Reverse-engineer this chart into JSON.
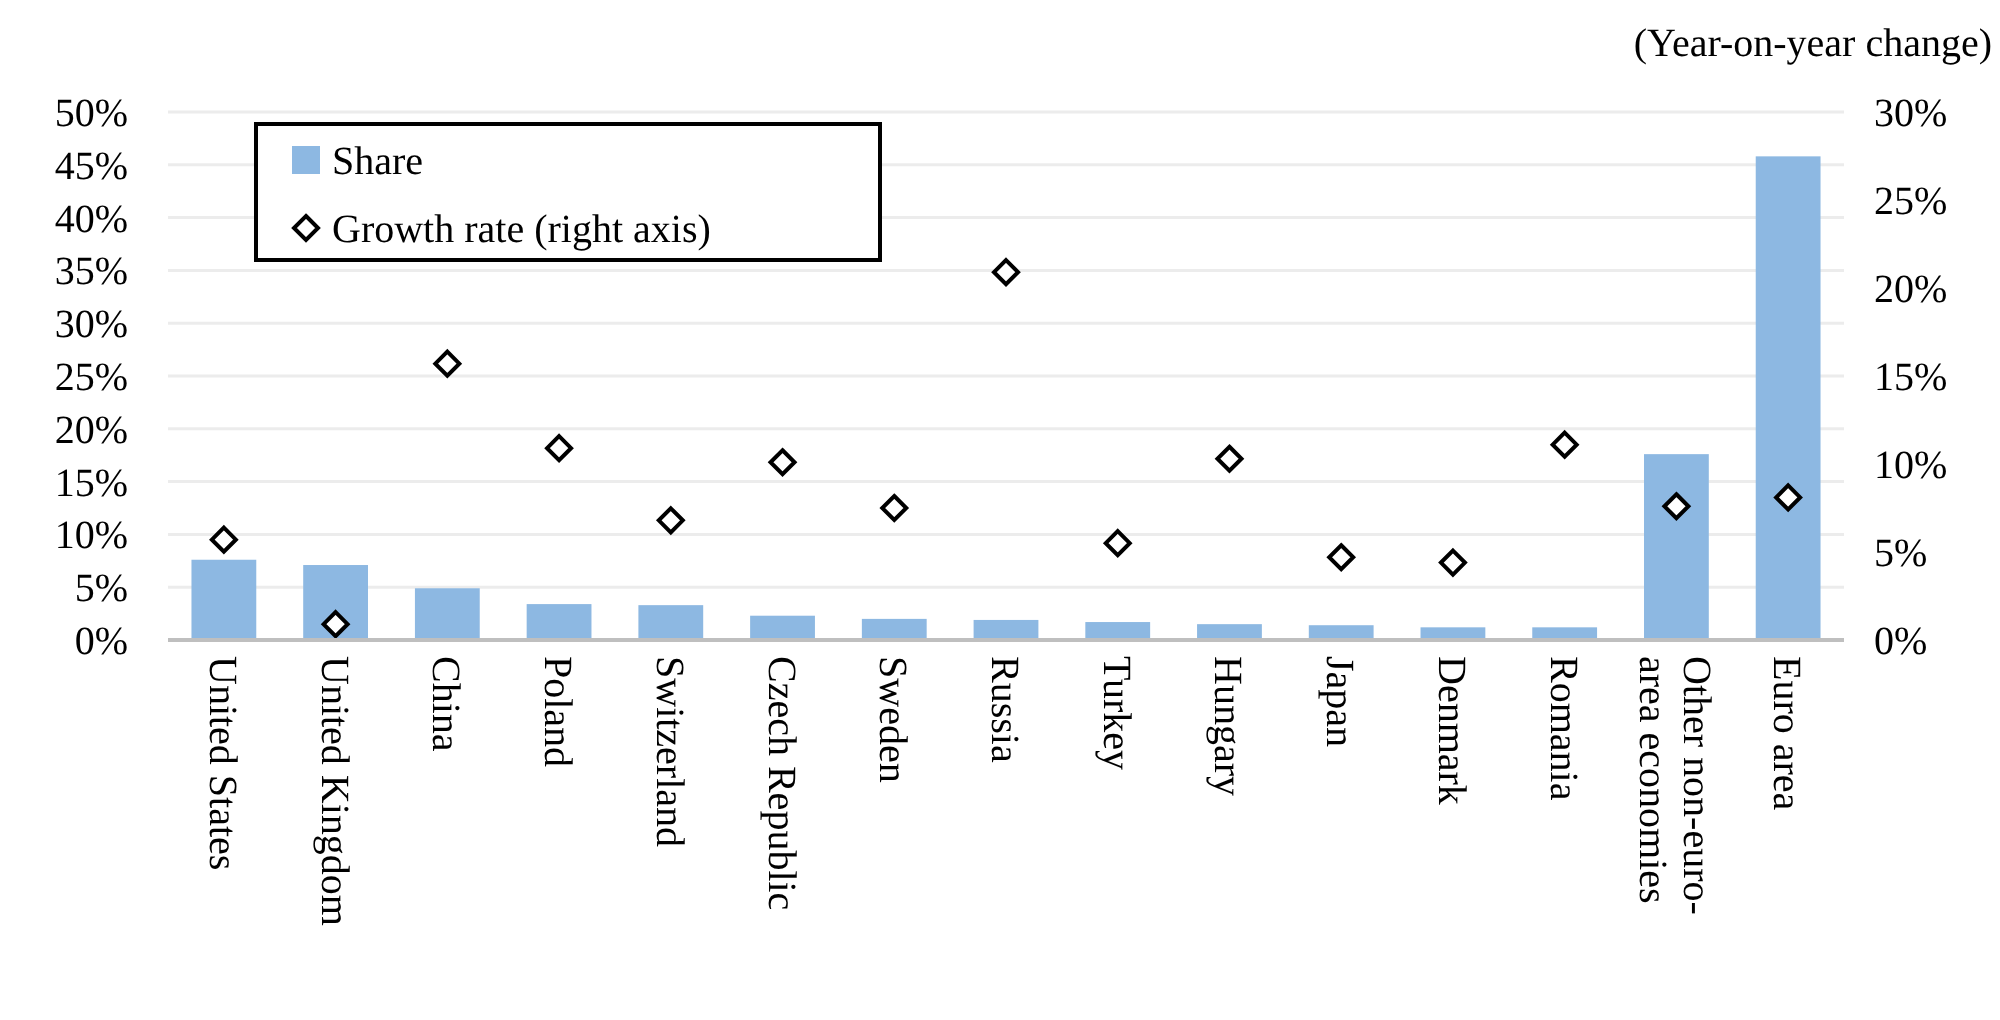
{
  "chart_data": {
    "type": "bar",
    "y2label": "(Year-on-year change)",
    "categories": [
      "United States",
      "United Kingdom",
      "China",
      "Poland",
      "Switzerland",
      "Czech Republic",
      "Sweden",
      "Russia",
      "Turkey",
      "Hungary",
      "Japan",
      "Denmark",
      "Romania",
      "Other non-euro-area economies",
      "Euro area"
    ],
    "series": [
      {
        "name": "Share",
        "color": "#8db8e2",
        "values": [
          7.6,
          7.1,
          4.9,
          3.4,
          3.3,
          2.3,
          2.0,
          1.9,
          1.7,
          1.5,
          1.4,
          1.2,
          1.2,
          17.6,
          45.8
        ]
      },
      {
        "name": "Growth rate (right axis)",
        "type": "scatter",
        "axis": "y2",
        "color": "#000000",
        "marker": "diamond",
        "values": [
          5.7,
          0.9,
          15.7,
          10.9,
          6.8,
          10.1,
          7.5,
          20.9,
          5.5,
          10.3,
          4.7,
          4.4,
          11.1,
          7.6,
          8.1
        ]
      }
    ],
    "ylim": [
      0,
      50
    ],
    "yticks": [
      {
        "value": 0,
        "label": "0%"
      },
      {
        "value": 5,
        "label": "5%"
      },
      {
        "value": 10,
        "label": "10%"
      },
      {
        "value": 15,
        "label": "15%"
      },
      {
        "value": 20,
        "label": "20%"
      },
      {
        "value": 25,
        "label": "25%"
      },
      {
        "value": 30,
        "label": "30%"
      },
      {
        "value": 35,
        "label": "35%"
      },
      {
        "value": 40,
        "label": "40%"
      },
      {
        "value": 45,
        "label": "45%"
      },
      {
        "value": 50,
        "label": "50%"
      }
    ],
    "y2lim": [
      0,
      30
    ],
    "y2ticks": [
      {
        "value": 0,
        "label": "0%"
      },
      {
        "value": 5,
        "label": "5%"
      },
      {
        "value": 10,
        "label": "10%"
      },
      {
        "value": 15,
        "label": "15%"
      },
      {
        "value": 20,
        "label": "20%"
      },
      {
        "value": 25,
        "label": "25%"
      },
      {
        "value": 30,
        "label": "30%"
      }
    ],
    "grid": "y",
    "legend": "top left"
  }
}
